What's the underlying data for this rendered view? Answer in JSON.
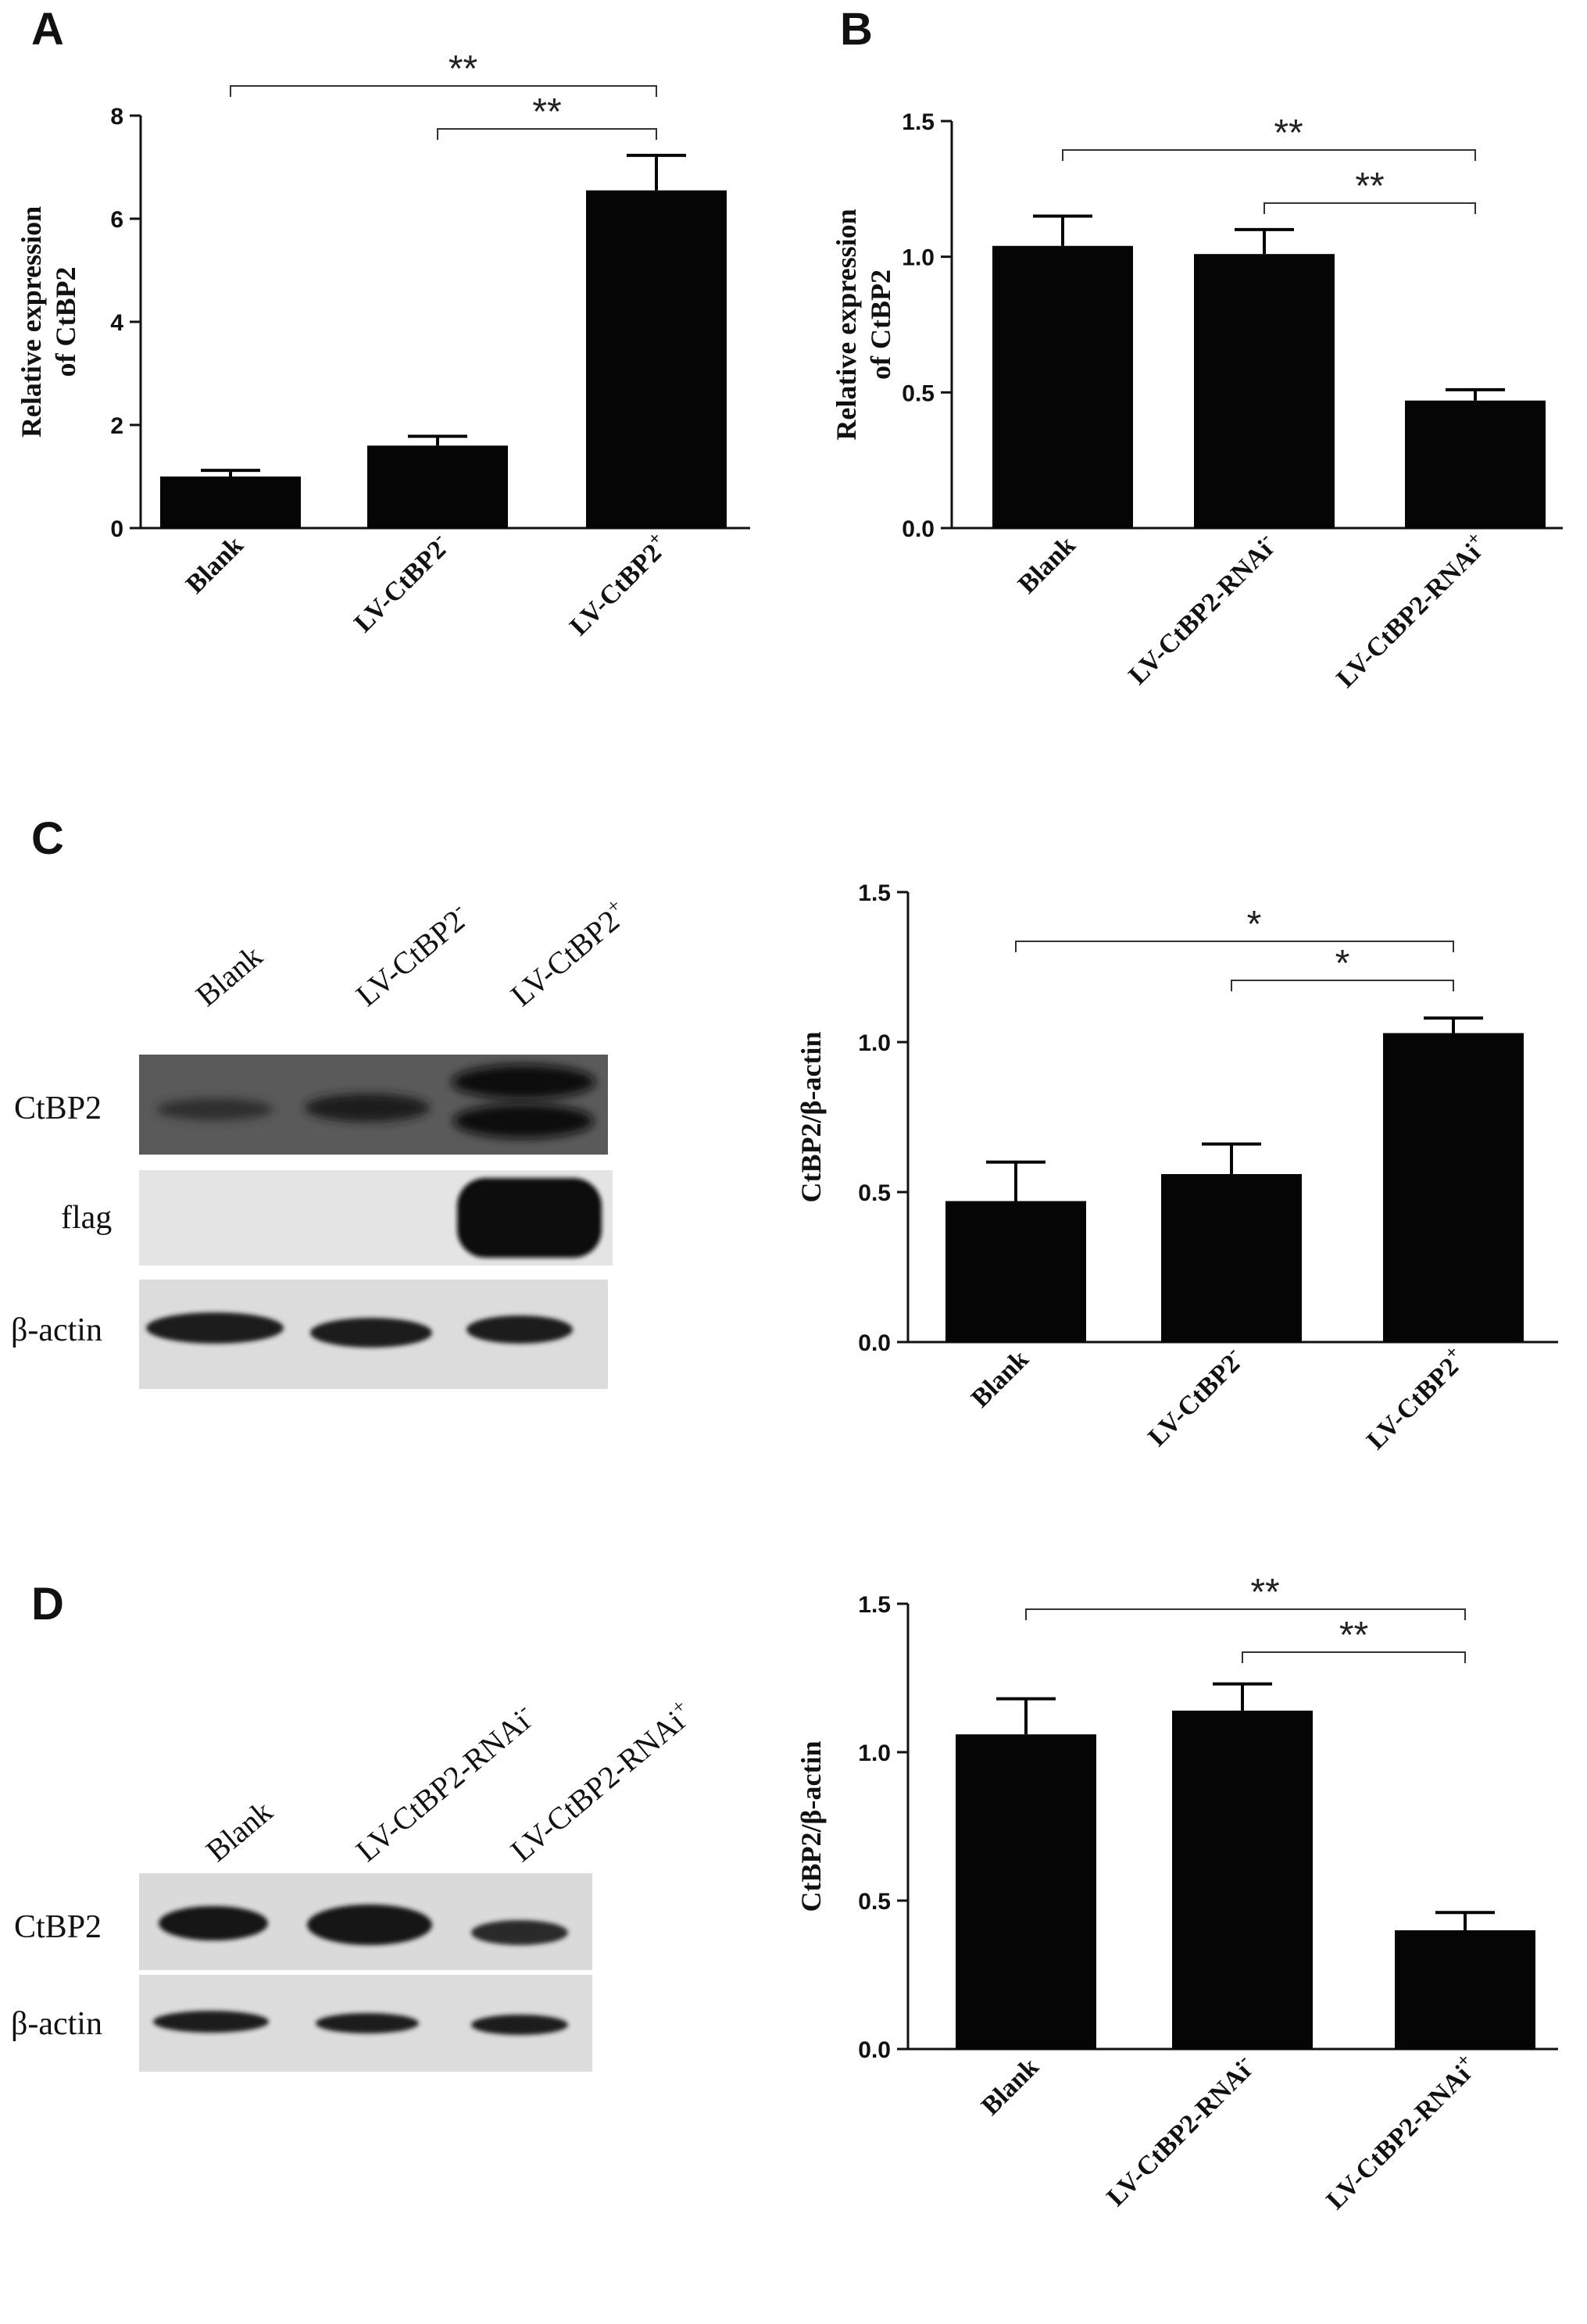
{
  "panels": [
    {
      "letter": "A"
    },
    {
      "letter": "B"
    },
    {
      "letter": "C"
    },
    {
      "letter": "D"
    }
  ],
  "blot_c": {
    "lanes": [
      "Blank",
      "LV-CtBP2",
      "LV-CtBP2"
    ],
    "lane_superscripts": [
      "",
      "-",
      "+"
    ],
    "rows": [
      "CtBP2",
      "flag",
      "β-actin"
    ]
  },
  "blot_d": {
    "lanes": [
      "Blank",
      "LV-CtBP2-RNAi",
      "LV-CtBP2-RNAi"
    ],
    "lane_superscripts": [
      "",
      "-",
      "+"
    ],
    "rows": [
      "CtBP2",
      "β-actin"
    ]
  },
  "chart_data": [
    {
      "id": "A",
      "type": "bar",
      "categories": [
        "Blank",
        "LV-CtBP2",
        "LV-CtBP2"
      ],
      "category_superscripts": [
        "",
        "-",
        "+"
      ],
      "values": [
        1.0,
        1.6,
        6.55
      ],
      "errors": [
        0.12,
        0.18,
        0.68
      ],
      "ylabel": [
        "Relative expression",
        "of CtBP2"
      ],
      "ylim": [
        0,
        8
      ],
      "yticks": [
        0,
        2,
        4,
        6,
        8
      ],
      "significance": [
        {
          "from": 0,
          "to": 2,
          "label": "**"
        },
        {
          "from": 1,
          "to": 2,
          "label": "**"
        }
      ]
    },
    {
      "id": "B",
      "type": "bar",
      "categories": [
        "Blank",
        "LV-CtBP2-RNAi",
        "LV-CtBP2-RNAi"
      ],
      "category_superscripts": [
        "",
        "-",
        "+"
      ],
      "values": [
        1.04,
        1.01,
        0.47
      ],
      "errors": [
        0.11,
        0.09,
        0.04
      ],
      "ylabel": [
        "Relative expression",
        "of CtBP2"
      ],
      "ylim": [
        0,
        1.5
      ],
      "yticks": [
        0.0,
        0.5,
        1.0,
        1.5
      ],
      "significance": [
        {
          "from": 0,
          "to": 2,
          "label": "**"
        },
        {
          "from": 1,
          "to": 2,
          "label": "**"
        }
      ]
    },
    {
      "id": "C",
      "type": "bar",
      "categories": [
        "Blank",
        "LV-CtBP2",
        "LV-CtBP2"
      ],
      "category_superscripts": [
        "",
        "-",
        "+"
      ],
      "values": [
        0.47,
        0.56,
        1.03
      ],
      "errors": [
        0.13,
        0.1,
        0.05
      ],
      "ylabel": [
        "CtBP2/β-actin"
      ],
      "ylim": [
        0,
        1.5
      ],
      "yticks": [
        0.0,
        0.5,
        1.0,
        1.5
      ],
      "significance": [
        {
          "from": 0,
          "to": 2,
          "label": "*"
        },
        {
          "from": 1,
          "to": 2,
          "label": "*"
        }
      ]
    },
    {
      "id": "D",
      "type": "bar",
      "categories": [
        "Blank",
        "LV-CtBP2-RNAi",
        "LV-CtBP2-RNAi"
      ],
      "category_superscripts": [
        "",
        "-",
        "+"
      ],
      "values": [
        1.06,
        1.14,
        0.4
      ],
      "errors": [
        0.12,
        0.09,
        0.06
      ],
      "ylabel": [
        "CtBP2/β-actin"
      ],
      "ylim": [
        0,
        1.5
      ],
      "yticks": [
        0.0,
        0.5,
        1.0,
        1.5
      ],
      "significance": [
        {
          "from": 0,
          "to": 2,
          "label": "**"
        },
        {
          "from": 1,
          "to": 2,
          "label": "**"
        }
      ]
    }
  ]
}
